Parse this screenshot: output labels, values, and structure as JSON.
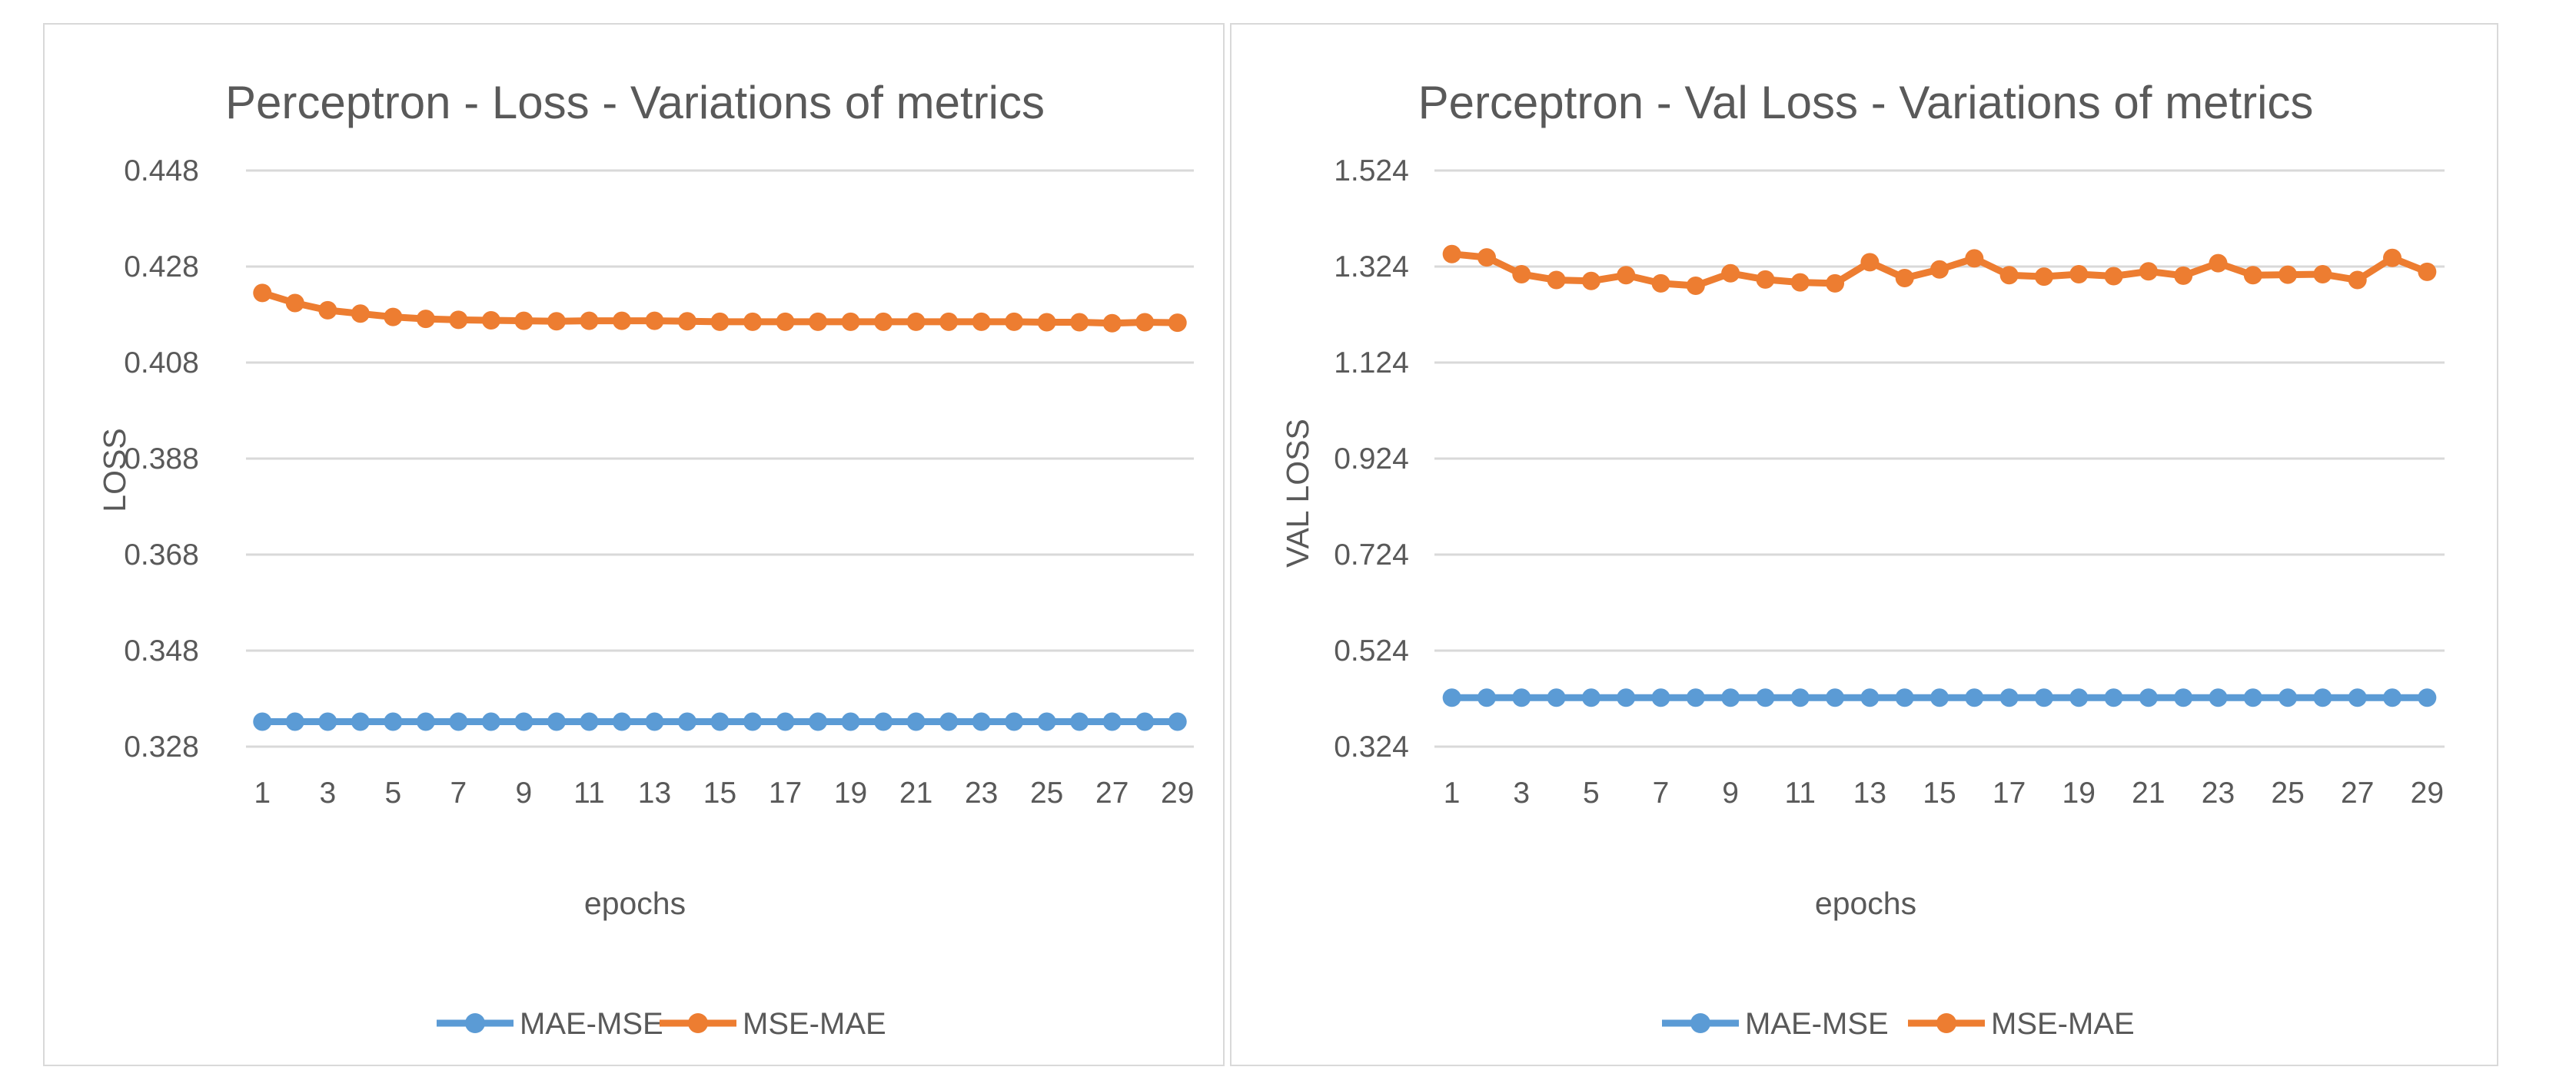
{
  "colors": {
    "mae_mse": "#5b9bd5",
    "mse_mae": "#ed7d31",
    "grid": "#d9d9d9",
    "text": "#595959"
  },
  "chart_data": [
    {
      "type": "line",
      "title": "Perceptron - Loss - Variations of metrics",
      "xlabel": "epochs",
      "ylabel": "LOSS",
      "ylim": [
        0.328,
        0.448
      ],
      "yticks": [
        "0.448",
        "0.428",
        "0.408",
        "0.388",
        "0.368",
        "0.348",
        "0.328"
      ],
      "ytick_values": [
        0.448,
        0.428,
        0.408,
        0.388,
        0.368,
        0.348,
        0.328
      ],
      "x": [
        1,
        2,
        3,
        4,
        5,
        6,
        7,
        8,
        9,
        10,
        11,
        12,
        13,
        14,
        15,
        16,
        17,
        18,
        19,
        20,
        21,
        22,
        23,
        24,
        25,
        26,
        27,
        28,
        29
      ],
      "xticks": [
        "1",
        "3",
        "5",
        "7",
        "9",
        "11",
        "13",
        "15",
        "17",
        "19",
        "21",
        "23",
        "25",
        "27",
        "29"
      ],
      "legend_position": "bottom",
      "series": [
        {
          "name": "MAE-MSE",
          "values": [
            0.3332,
            0.3332,
            0.3332,
            0.3332,
            0.3332,
            0.3332,
            0.3332,
            0.3332,
            0.3332,
            0.3332,
            0.3332,
            0.3332,
            0.3332,
            0.3332,
            0.3332,
            0.3332,
            0.3332,
            0.3332,
            0.3332,
            0.3332,
            0.3332,
            0.3332,
            0.3332,
            0.3332,
            0.3332,
            0.3332,
            0.3332,
            0.3332,
            0.3332
          ]
        },
        {
          "name": "MSE-MAE",
          "values": [
            0.4225,
            0.4204,
            0.4189,
            0.4182,
            0.4175,
            0.4171,
            0.4169,
            0.4168,
            0.4167,
            0.4166,
            0.4167,
            0.4167,
            0.4167,
            0.4166,
            0.4165,
            0.4165,
            0.4165,
            0.4165,
            0.4165,
            0.4165,
            0.4165,
            0.4165,
            0.4165,
            0.4165,
            0.4164,
            0.4164,
            0.4162,
            0.4164,
            0.4163
          ]
        }
      ]
    },
    {
      "type": "line",
      "title": "Perceptron - Val Loss - Variations of metrics",
      "xlabel": "epochs",
      "ylabel": "VAL LOSS",
      "ylim": [
        0.324,
        1.524
      ],
      "yticks": [
        "1.524",
        "1.324",
        "1.124",
        "0.924",
        "0.724",
        "0.524",
        "0.324"
      ],
      "ytick_values": [
        1.524,
        1.324,
        1.124,
        0.924,
        0.724,
        0.524,
        0.324
      ],
      "x": [
        1,
        2,
        3,
        4,
        5,
        6,
        7,
        8,
        9,
        10,
        11,
        12,
        13,
        14,
        15,
        16,
        17,
        18,
        19,
        20,
        21,
        22,
        23,
        24,
        25,
        26,
        27,
        28,
        29
      ],
      "xticks": [
        "1",
        "3",
        "5",
        "7",
        "9",
        "11",
        "13",
        "15",
        "17",
        "19",
        "21",
        "23",
        "25",
        "27",
        "29"
      ],
      "legend_position": "bottom",
      "series": [
        {
          "name": "MAE-MSE",
          "values": [
            0.426,
            0.426,
            0.426,
            0.426,
            0.426,
            0.426,
            0.426,
            0.426,
            0.426,
            0.426,
            0.426,
            0.426,
            0.426,
            0.426,
            0.426,
            0.426,
            0.426,
            0.426,
            0.426,
            0.426,
            0.426,
            0.426,
            0.426,
            0.426,
            0.426,
            0.426,
            0.426,
            0.426,
            0.426
          ]
        },
        {
          "name": "MSE-MAE",
          "values": [
            1.35,
            1.343,
            1.308,
            1.296,
            1.294,
            1.306,
            1.289,
            1.284,
            1.31,
            1.297,
            1.291,
            1.289,
            1.333,
            1.3,
            1.318,
            1.341,
            1.306,
            1.303,
            1.308,
            1.304,
            1.314,
            1.305,
            1.331,
            1.306,
            1.307,
            1.308,
            1.296,
            1.342,
            1.313
          ]
        }
      ]
    }
  ]
}
